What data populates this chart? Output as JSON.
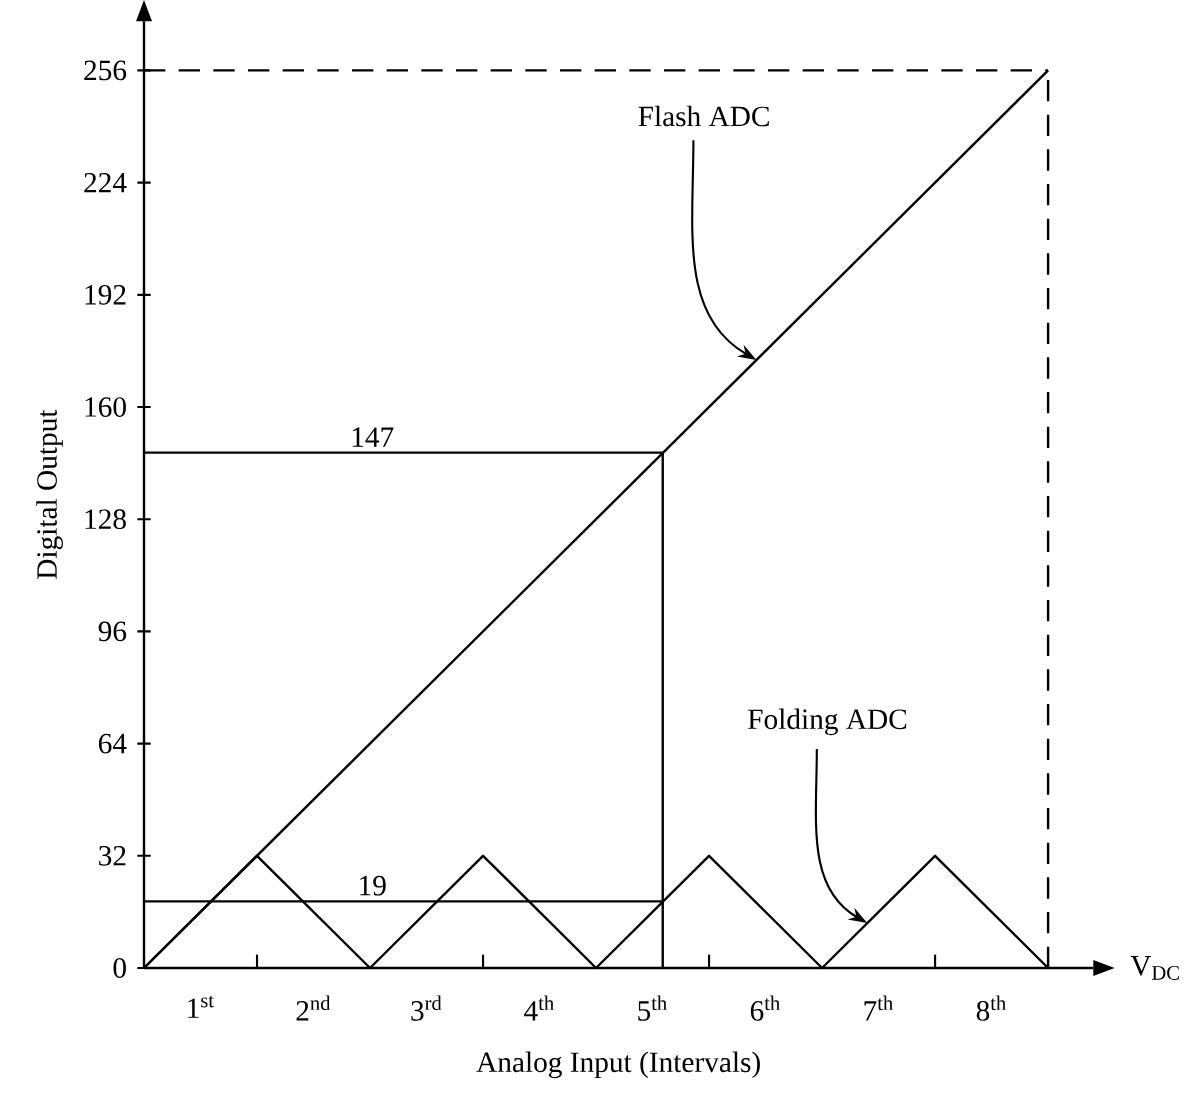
{
  "chart_data": {
    "type": "line",
    "xlabel": "Analog Input (Intervals)",
    "ylabel": "Digital Output",
    "xlim": [
      0,
      8.4
    ],
    "ylim": [
      0,
      270
    ],
    "xticks": [
      {
        "value": 0.5,
        "label": "1$^{st}$"
      },
      {
        "value": 1,
        "label": null
      },
      {
        "value": 1.5,
        "label": "2$^{nd}$"
      },
      {
        "value": 2.5,
        "label": "3$^{rd}$"
      },
      {
        "value": 3,
        "label": null
      },
      {
        "value": 3.5,
        "label": "4$^{th}$"
      },
      {
        "value": 4.5,
        "label": "5$^{th}$"
      },
      {
        "value": 5,
        "label": null
      },
      {
        "value": 5.5,
        "label": "6$^{th}$"
      },
      {
        "value": 6.5,
        "label": "7$^{th}$"
      },
      {
        "value": 7,
        "label": null
      },
      {
        "value": 7.5,
        "label": "8$^{th}$"
      }
    ],
    "yticks": [
      0,
      32,
      64,
      96,
      128,
      160,
      192,
      224,
      256
    ],
    "series": [
      {
        "color": "#000000",
        "x": [
          0,
          8
        ],
        "values": [
          0,
          256
        ]
      },
      {
        "color": "#000000",
        "x": [
          0,
          1,
          2,
          3,
          4,
          5,
          6,
          7,
          8
        ],
        "values": [
          0,
          32,
          0,
          32,
          0,
          32,
          0,
          32,
          0
        ]
      }
    ],
    "ref_lines": [
      {
        "axis": "y",
        "value": 147,
        "label": "147"
      },
      {
        "axis": "y",
        "value": 19,
        "label": "19"
      },
      {
        "axis": "x",
        "value": 4.59
      },
      {
        "axis": "y",
        "value": 256,
        "line_style": "dashed"
      },
      {
        "axis": "x",
        "value": 8,
        "line_style": "dashed"
      }
    ],
    "annotations": [
      {
        "text": "Flash ADC",
        "x": 5.42,
        "y": 173.4
      },
      {
        "text": "Folding ADC",
        "x": 6.4,
        "y": 12.8
      },
      "V$_{DC}$"
    ]
  }
}
